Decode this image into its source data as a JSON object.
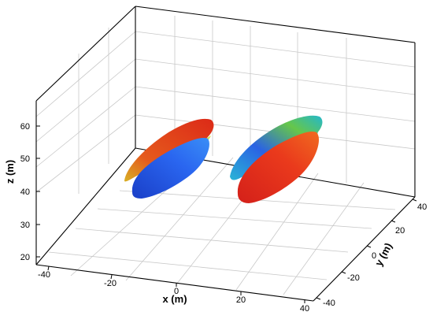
{
  "chart_data": {
    "type": "3d-isosurface",
    "xlabel": "x (m)",
    "ylabel": "y (m)",
    "zlabel": "z (m)",
    "xlim": [
      -45,
      45
    ],
    "ylim": [
      -45,
      45
    ],
    "zlim": [
      18,
      65
    ],
    "x_ticks": [
      "-40",
      "-20",
      "0",
      "20",
      "40"
    ],
    "y_ticks": [
      "-40",
      "-20",
      "0",
      "20",
      "40"
    ],
    "z_ticks": [
      "20",
      "30",
      "40",
      "50",
      "60"
    ],
    "grid": true,
    "colors": {
      "red": "#e8321c",
      "orange": "#f08a18",
      "yellow": "#d8dc28",
      "green": "#6cc24a",
      "cyan": "#28b8d8",
      "blue": "#1e50e0",
      "axis": "#000000",
      "grid": "#c8c8c8"
    },
    "series": [
      {
        "center": [
          -20,
          0,
          45
        ]
      },
      {
        "center": [
          20,
          0,
          45
        ]
      }
    ]
  }
}
